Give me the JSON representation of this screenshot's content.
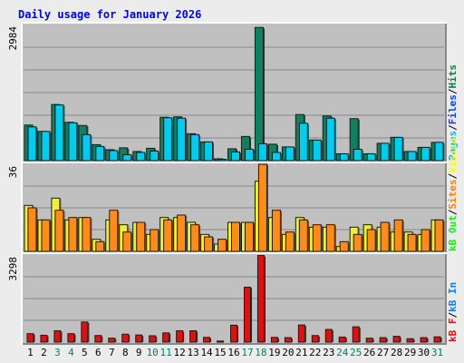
{
  "chart_data": [
    {
      "type": "bar",
      "panel": "pages-files-hits",
      "title": "Daily usage for January 2026",
      "y_max_label": "2984",
      "ylim": [
        0,
        2984
      ],
      "grid": true,
      "legend_placement": "right",
      "categories": [
        "1",
        "2",
        "3",
        "4",
        "5",
        "6",
        "7",
        "8",
        "9",
        "10",
        "11",
        "12",
        "13",
        "14",
        "15",
        "16",
        "17",
        "18",
        "19",
        "20",
        "21",
        "22",
        "23",
        "24",
        "25",
        "26",
        "27",
        "28",
        "29",
        "30",
        "31"
      ],
      "weekend_days": [
        "3",
        "4",
        "10",
        "11",
        "17",
        "18",
        "24",
        "25",
        "31"
      ],
      "legend": {
        "hits": "Hits",
        "files": "Files",
        "pages": "Pages",
        "sep": "/"
      },
      "colors": {
        "hits": "#008040",
        "files": "#0040ff",
        "pages": "#00c0ff"
      },
      "series": [
        {
          "name": "Hits",
          "color": "#128060",
          "values": [
            780,
            640,
            1230,
            840,
            770,
            350,
            240,
            280,
            200,
            270,
            950,
            960,
            590,
            410,
            40,
            260,
            530,
            2920,
            360,
            300,
            1010,
            450,
            980,
            150,
            920,
            150,
            380,
            510,
            200,
            290,
            400
          ]
        },
        {
          "name": "Files",
          "color": "#00ccee",
          "values": [
            740,
            640,
            1220,
            830,
            570,
            310,
            220,
            130,
            180,
            210,
            940,
            930,
            570,
            410,
            30,
            190,
            250,
            370,
            180,
            300,
            820,
            450,
            930,
            150,
            250,
            150,
            380,
            510,
            200,
            290,
            400
          ]
        }
      ]
    },
    {
      "type": "bar",
      "panel": "sites-visits-kbout",
      "y_max_label": "36",
      "ylim": [
        0,
        36
      ],
      "grid": true,
      "legend_placement": "right",
      "categories": [
        "1",
        "2",
        "3",
        "4",
        "5",
        "6",
        "7",
        "8",
        "9",
        "10",
        "11",
        "12",
        "13",
        "14",
        "15",
        "16",
        "17",
        "18",
        "19",
        "20",
        "21",
        "22",
        "23",
        "24",
        "25",
        "26",
        "27",
        "28",
        "29",
        "30",
        "31"
      ],
      "legend": {
        "kbout": "kB Out",
        "sites": "Sites",
        "visits": "Visits",
        "sep": "/"
      },
      "colors": {
        "visits": "#ffff00",
        "sites": "#ff8000",
        "kbout": "#00ff00"
      },
      "series": [
        {
          "name": "Visits",
          "color": "#eeee33",
          "values": [
            19,
            13,
            22,
            13,
            14,
            5,
            13,
            11,
            12,
            7,
            14,
            14,
            12,
            7,
            3,
            12,
            12,
            29,
            14,
            7,
            14,
            10,
            10,
            2,
            10,
            11,
            10,
            8,
            8,
            7,
            13
          ]
        },
        {
          "name": "Sites",
          "color": "#ff8c1a",
          "values": [
            18,
            13,
            17,
            14,
            14,
            4,
            17,
            8,
            12,
            9,
            13,
            15,
            11,
            6,
            5,
            12,
            12,
            36,
            17,
            8,
            13,
            11,
            11,
            4,
            7,
            9,
            12,
            13,
            7,
            9,
            13
          ]
        }
      ]
    },
    {
      "type": "bar",
      "panel": "kbf-kbin",
      "y_max_label": "3298",
      "ylim": [
        0,
        3298
      ],
      "grid": true,
      "legend_placement": "right",
      "categories": [
        "1",
        "2",
        "3",
        "4",
        "5",
        "6",
        "7",
        "8",
        "9",
        "10",
        "11",
        "12",
        "13",
        "14",
        "15",
        "16",
        "17",
        "18",
        "19",
        "20",
        "21",
        "22",
        "23",
        "24",
        "25",
        "26",
        "27",
        "28",
        "29",
        "30",
        "31"
      ],
      "legend": {
        "kbf": "kB F",
        "kbin": "kB In",
        "sep": "/"
      },
      "colors": {
        "kbf": "#ff0000",
        "kbin": "#0080ff"
      },
      "series": [
        {
          "name": "kB F",
          "color": "#dd1111",
          "values": [
            320,
            260,
            430,
            320,
            760,
            250,
            150,
            300,
            270,
            240,
            350,
            430,
            430,
            180,
            40,
            640,
            2080,
            3280,
            180,
            170,
            650,
            250,
            480,
            190,
            580,
            150,
            170,
            220,
            130,
            170,
            200
          ]
        }
      ]
    }
  ],
  "day_label_colors": {
    "weekday": "#000000",
    "weekend": "#00805c"
  },
  "chart_colors": {
    "background": "#c0c0c0",
    "grid": "#888888",
    "title": "#0000ff",
    "frame": "#ececec"
  }
}
